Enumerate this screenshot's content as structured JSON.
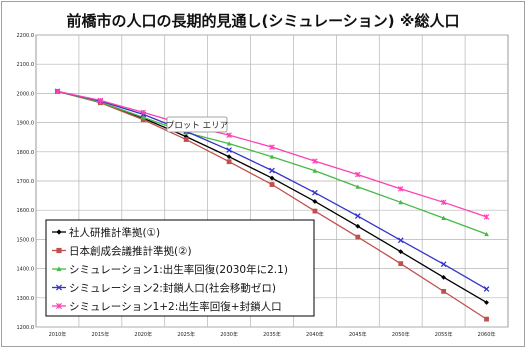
{
  "chart_data": {
    "type": "line",
    "title": "前橋市の人口の長期的見通し(シミュレーション)  ※総人口",
    "x": [
      "2010年",
      "2015年",
      "2020年",
      "2025年",
      "2030年",
      "2035年",
      "2040年",
      "2045年",
      "2050年",
      "2055年",
      "2060年"
    ],
    "y_ticks": [
      "1200.0",
      "1300.0",
      "1400.0",
      "1500.0",
      "1600.0",
      "1700.0",
      "1800.0",
      "1900.0",
      "2000.0",
      "2100.0",
      "2200.0"
    ],
    "ylim": [
      1200,
      2200
    ],
    "grid": true,
    "legend_position": "bottom-left",
    "series": [
      {
        "name": "社人研推計準拠(①)",
        "color": "#000000",
        "marker": "diamond",
        "values": [
          2007,
          1970,
          1915,
          1852,
          1783,
          1710,
          1630,
          1545,
          1458,
          1370,
          1284
        ]
      },
      {
        "name": "日本創成会議推計準拠(②)",
        "color": "#c0504d",
        "marker": "square",
        "values": [
          2007,
          1968,
          1910,
          1842,
          1766,
          1688,
          1597,
          1508,
          1417,
          1322,
          1227
        ]
      },
      {
        "name": "シミュレーション1:出生率回復(2030年に2.1)",
        "color": "#46b946",
        "marker": "triangle",
        "values": [
          2007,
          1970,
          1918,
          1866,
          1828,
          1783,
          1735,
          1680,
          1627,
          1573,
          1518
        ]
      },
      {
        "name": "シミュレーション2:封鎖人口(社会移動ゼロ)",
        "color": "#3434cc",
        "marker": "x",
        "values": [
          2007,
          1974,
          1928,
          1870,
          1806,
          1736,
          1660,
          1580,
          1497,
          1415,
          1330
        ]
      },
      {
        "name": "シミュレーション1+2:出生率回復+封鎖人口",
        "color": "#ff40b4",
        "marker": "star",
        "values": [
          2007,
          1976,
          1935,
          1892,
          1857,
          1816,
          1768,
          1722,
          1673,
          1627,
          1577
        ]
      }
    ],
    "tooltip": "プロット エリア"
  }
}
